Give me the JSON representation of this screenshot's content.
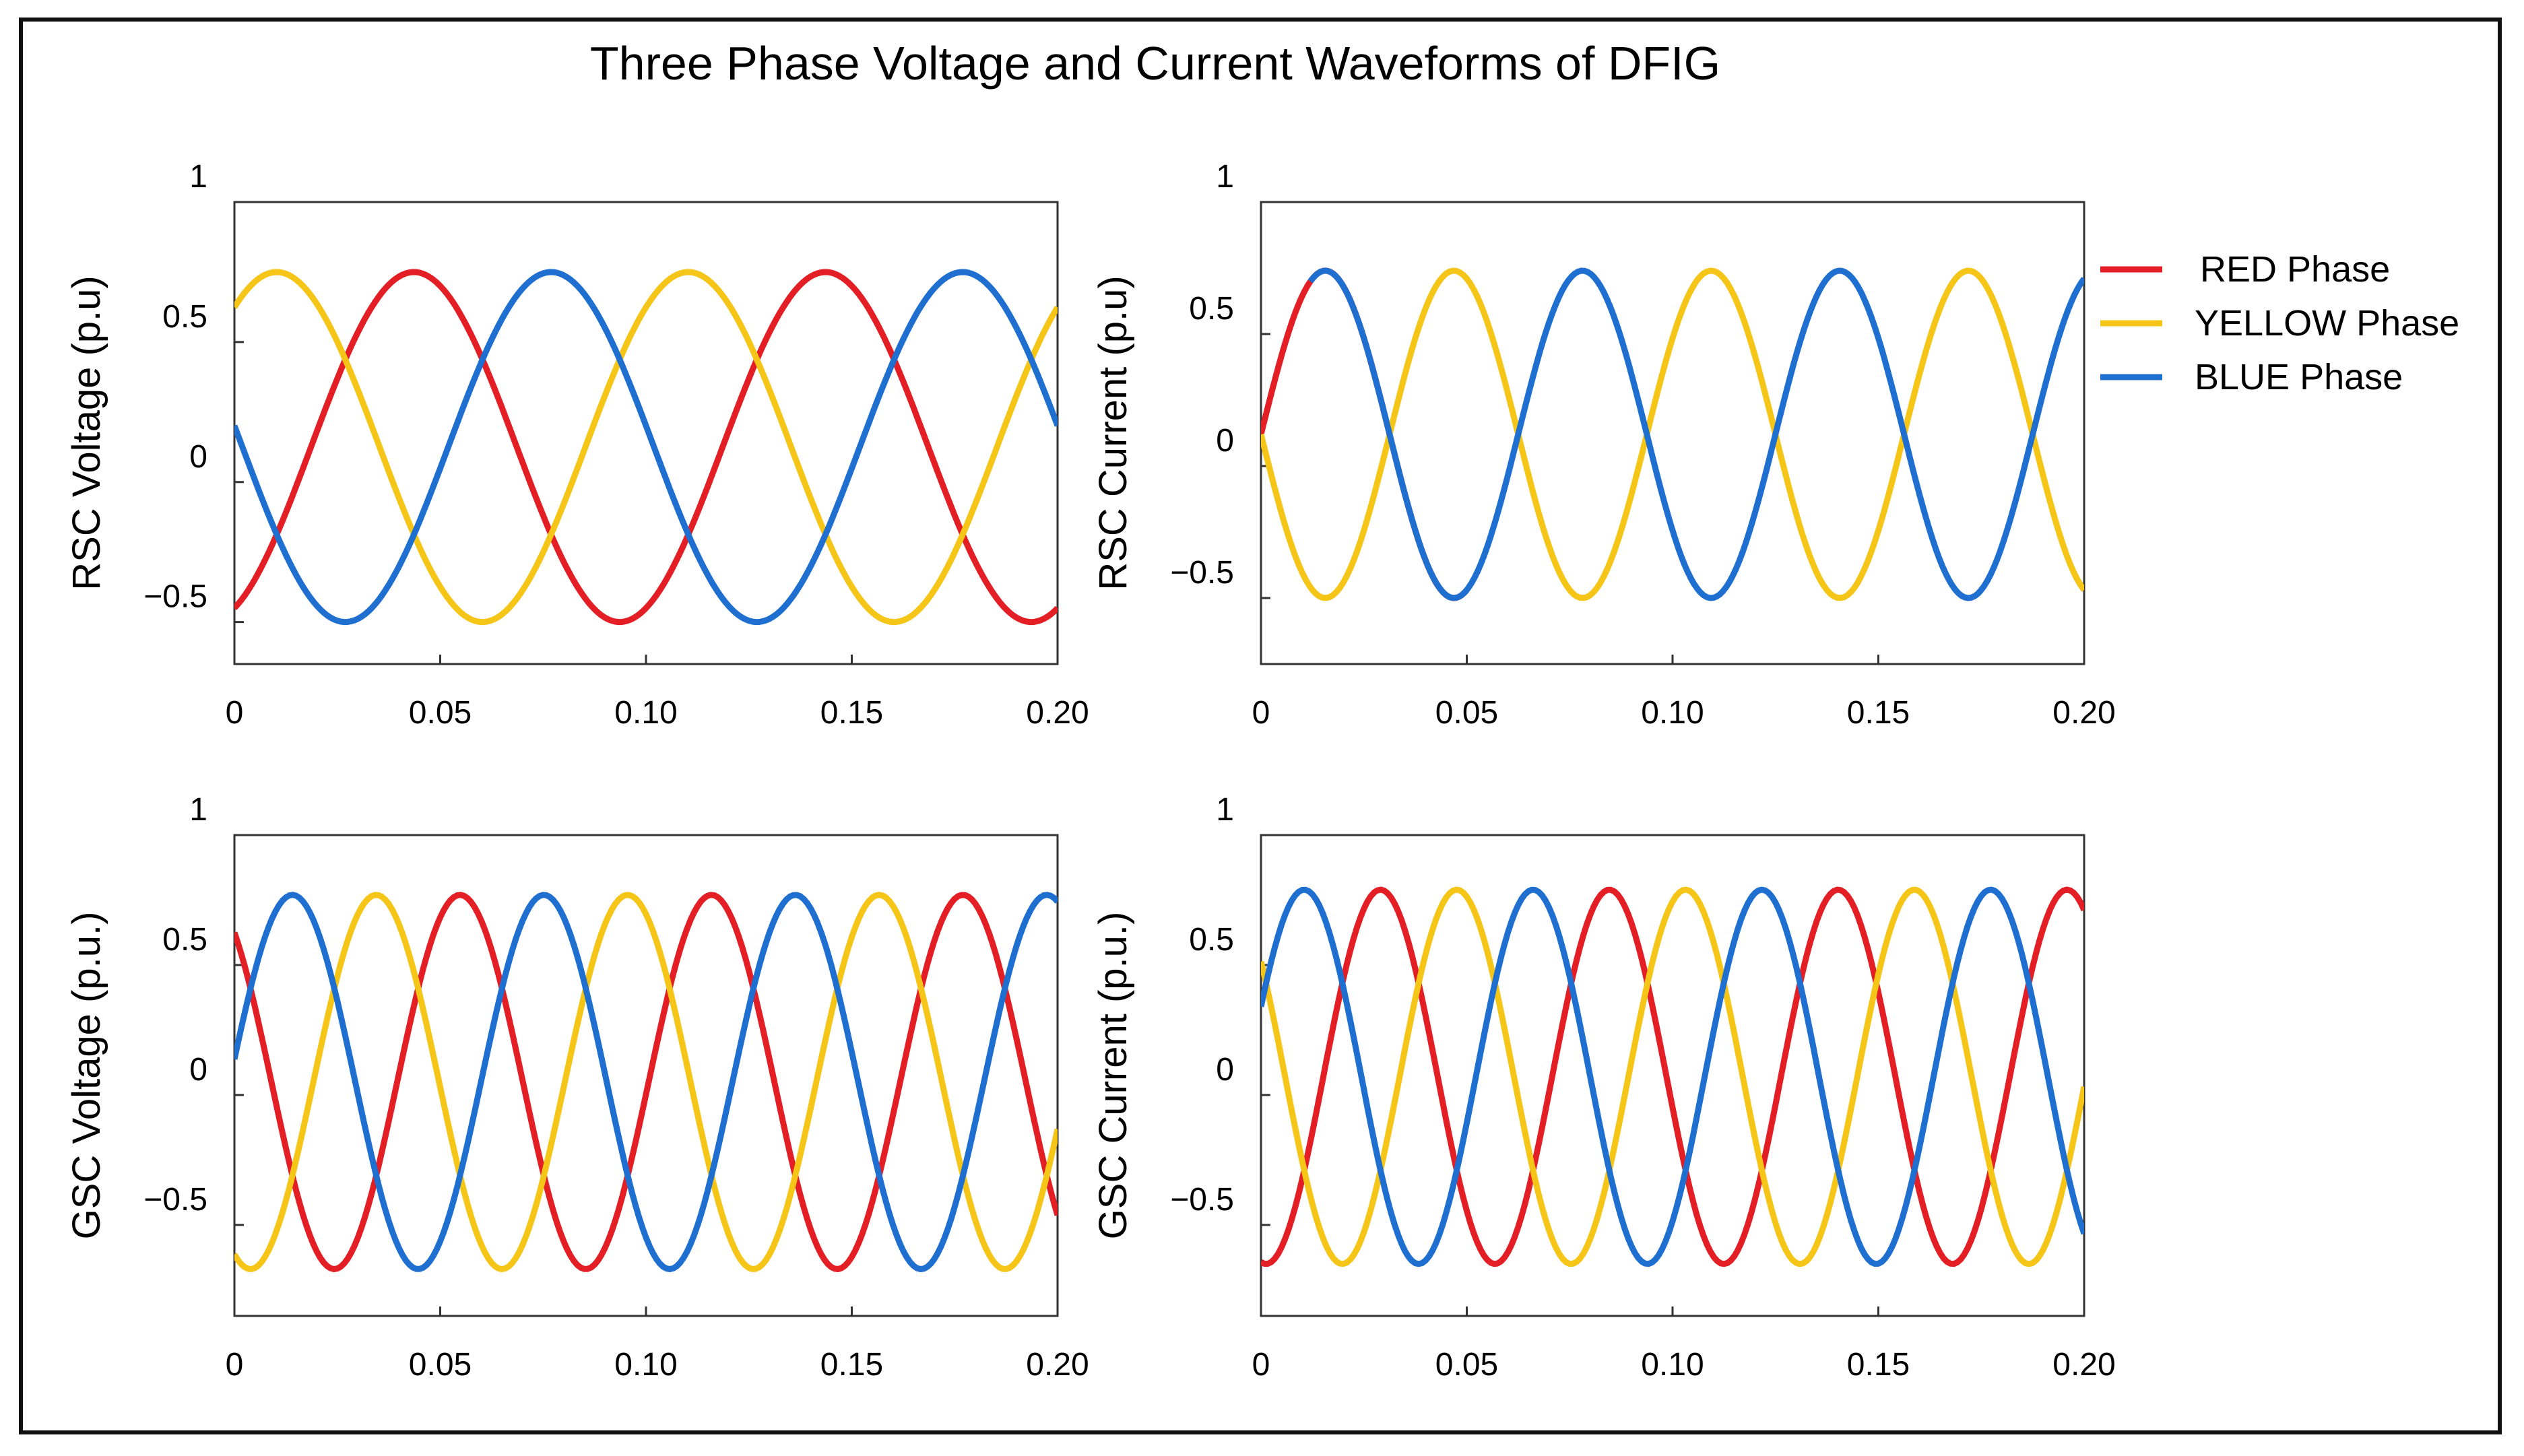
{
  "figure": {
    "title": "Three Phase Voltage and Current Waveforms of DFIG"
  },
  "legend": {
    "position": "right of top-right panel",
    "entries": [
      {
        "label": "RED Phase",
        "color": "#e31e24"
      },
      {
        "label": "YELLOW Phase",
        "color": "#f5c518"
      },
      {
        "label": "BLUE Phase",
        "color": "#1f6fd1"
      }
    ]
  },
  "colors": {
    "red": "#e31e24",
    "yellow": "#f5c518",
    "blue": "#1f6fd1",
    "axis": "#333333",
    "frame": "#111111"
  },
  "chart_data": [
    {
      "type": "line",
      "id": "rsc-voltage",
      "ylabel": "RSC Voltage (p.u)",
      "xlabel": "",
      "xlim": [
        0,
        0.2
      ],
      "ylim": [
        -0.65,
        1.0
      ],
      "xticks": [
        0,
        0.05,
        0.1,
        0.15,
        0.2
      ],
      "xtick_labels": [
        "0",
        "0.05",
        "0.10",
        "0.15",
        "0.20"
      ],
      "yticks": [
        -0.5,
        0,
        0.5,
        1
      ],
      "ytick_labels": [
        "−0.5",
        "0",
        "0.5",
        "1"
      ],
      "grid": false,
      "waveform": {
        "form": "sine",
        "offset": 0.125,
        "amplitude": 0.625,
        "period": 0.1,
        "samples": 241
      },
      "series": [
        {
          "name": "RED Phase",
          "color": "#e31e24",
          "phase_deg": -67
        },
        {
          "name": "YELLOW Phase",
          "color": "#f5c518",
          "phase_deg": 53
        },
        {
          "name": "BLUE Phase",
          "color": "#1f6fd1",
          "phase_deg": 173
        }
      ]
    },
    {
      "type": "line",
      "id": "rsc-current",
      "ylabel": "RSC Current (p.u)",
      "xlabel": "",
      "xlim": [
        0,
        0.2
      ],
      "ylim": [
        -0.75,
        1.0
      ],
      "xticks": [
        0,
        0.05,
        0.1,
        0.15,
        0.2
      ],
      "xtick_labels": [
        "0",
        "0.05",
        "0.10",
        "0.15",
        "0.20"
      ],
      "yticks": [
        -0.5,
        0,
        0.5,
        1
      ],
      "ytick_labels": [
        "−0.5",
        "0",
        "0.5",
        "1"
      ],
      "grid": false,
      "waveform": {
        "form": "sine",
        "offset": 0.12,
        "amplitude": 0.62,
        "period": 0.0625,
        "samples": 241
      },
      "series": [
        {
          "name": "RED Phase",
          "color": "#e31e24",
          "phase_deg": 0,
          "t_range": [
            0,
            0.05
          ]
        },
        {
          "name": "YELLOW Phase",
          "color": "#f5c518",
          "phase_deg": 180
        },
        {
          "name": "BLUE Phase",
          "color": "#1f6fd1",
          "phase_deg": 0,
          "t_range": [
            0.012,
            0.2
          ]
        }
      ]
    },
    {
      "type": "line",
      "id": "gsc-voltage",
      "ylabel": "GSC Voltage (p.u.)",
      "xlabel": "",
      "xlim": [
        0,
        0.2
      ],
      "ylim": [
        -0.85,
        1.0
      ],
      "xticks": [
        0,
        0.05,
        0.1,
        0.15,
        0.2
      ],
      "xtick_labels": [
        "0",
        "0.05",
        "0.10",
        "0.15",
        "0.20"
      ],
      "yticks": [
        -0.5,
        0,
        0.5,
        1
      ],
      "ytick_labels": [
        "−0.5",
        "0",
        "0.5",
        "1"
      ],
      "grid": false,
      "waveform": {
        "form": "sine",
        "offset": 0.05,
        "amplitude": 0.72,
        "period": 0.0611,
        "samples": 241
      },
      "series": [
        {
          "name": "RED Phase",
          "color": "#e31e24",
          "phase_deg": 127
        },
        {
          "name": "YELLOW Phase",
          "color": "#f5c518",
          "phase_deg": 247
        },
        {
          "name": "BLUE Phase",
          "color": "#1f6fd1",
          "phase_deg": 7
        }
      ]
    },
    {
      "type": "line",
      "id": "gsc-current",
      "ylabel": "GSC Current (p.u.)",
      "xlabel": "",
      "xlim": [
        0,
        0.2
      ],
      "ylim": [
        -0.85,
        1.0
      ],
      "xticks": [
        0,
        0.05,
        0.1,
        0.15,
        0.2
      ],
      "xtick_labels": [
        "0",
        "0.05",
        "0.10",
        "0.15",
        "0.20"
      ],
      "yticks": [
        -0.5,
        0,
        0.5,
        1
      ],
      "ytick_labels": [
        "−0.5",
        "0",
        "0.5",
        "1"
      ],
      "grid": false,
      "waveform": {
        "form": "sine",
        "offset": 0.07,
        "amplitude": 0.72,
        "period": 0.0556,
        "samples": 241
      },
      "series": [
        {
          "name": "RED Phase",
          "color": "#e31e24",
          "phase_deg": -98
        },
        {
          "name": "YELLOW Phase",
          "color": "#f5c518",
          "phase_deg": 142
        },
        {
          "name": "BLUE Phase",
          "color": "#1f6fd1",
          "phase_deg": 22
        }
      ]
    }
  ]
}
